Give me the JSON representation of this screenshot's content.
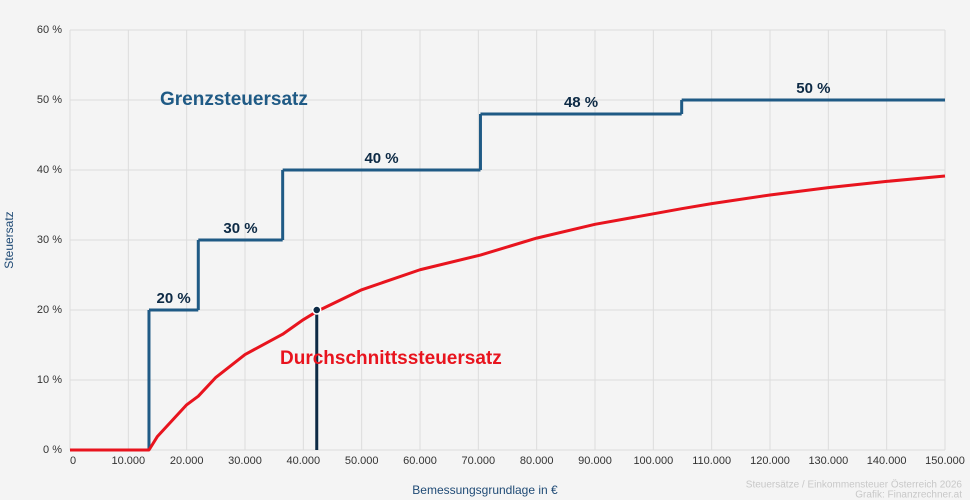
{
  "chart_data": {
    "type": "line",
    "x_label": "Bemessungsgrundlage in €",
    "y_label": "Steuersatz",
    "credits": [
      "Steuersätze / Einkommensteuer Österreich 2026",
      "Grafik: Finanzrechner.at"
    ],
    "xlim": [
      0,
      150000
    ],
    "ylim": [
      0,
      60
    ],
    "xticks": [
      0,
      {
        "value": 10000,
        "label": "10.000"
      },
      {
        "value": 20000,
        "label": "20.000"
      },
      {
        "value": 30000,
        "label": "30.000"
      },
      {
        "value": 40000,
        "label": "40.000"
      },
      {
        "value": 50000,
        "label": "50.000"
      },
      {
        "value": 60000,
        "label": "60.000"
      },
      {
        "value": 70000,
        "label": "70.000"
      },
      {
        "value": 80000,
        "label": "80.000"
      },
      {
        "value": 90000,
        "label": "90.000"
      },
      {
        "value": 100000,
        "label": "100.000"
      },
      {
        "value": 110000,
        "label": "110.000"
      },
      {
        "value": 120000,
        "label": "120.000"
      },
      {
        "value": 130000,
        "label": "130.000"
      },
      {
        "value": 140000,
        "label": "140.000"
      },
      {
        "value": 150000,
        "label": "150.000"
      }
    ],
    "yticks": [
      {
        "value": 0,
        "label": "0 %"
      },
      {
        "value": 10,
        "label": "10 %"
      },
      {
        "value": 20,
        "label": "20 %"
      },
      {
        "value": 30,
        "label": "30 %"
      },
      {
        "value": 40,
        "label": "40 %"
      },
      {
        "value": 50,
        "label": "50 %"
      },
      {
        "value": 60,
        "label": "60 %"
      }
    ],
    "grid": true,
    "series": [
      {
        "name": "Grenzsteuersatz",
        "color": "#1f5a85",
        "step": true,
        "x": [
          0,
          13539,
          21992,
          36458,
          70365,
          104859
        ],
        "values": [
          0,
          20,
          30,
          40,
          48,
          50
        ],
        "value_labels": [
          null,
          "20 %",
          "30 %",
          "40 %",
          "48 %",
          "50 %"
        ]
      },
      {
        "name": "Durchschnittssteuersatz",
        "color": "#e8141e",
        "x": [
          0,
          10000,
          13539,
          15000,
          20000,
          21992,
          25000,
          30000,
          36458,
          40000,
          42500,
          50000,
          60000,
          70365,
          80000,
          90000,
          104859,
          110000,
          120000,
          130000,
          140000,
          150000
        ],
        "values": [
          0,
          0,
          0,
          1.95,
          6.46,
          7.69,
          10.37,
          13.64,
          16.54,
          18.62,
          19.88,
          22.89,
          25.75,
          27.85,
          30.27,
          32.24,
          34.47,
          35.2,
          36.43,
          37.48,
          38.37,
          39.15
        ]
      }
    ],
    "marker": {
      "x": 42300,
      "y": 20,
      "color": "#0d2a45"
    }
  }
}
